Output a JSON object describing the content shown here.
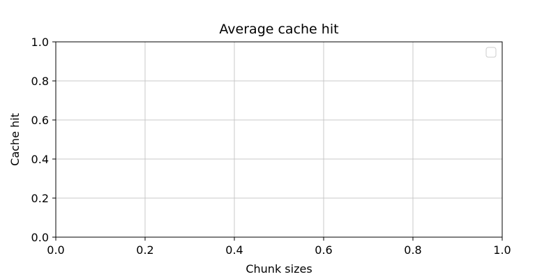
{
  "chart_data": {
    "type": "line",
    "title": "Average cache hit",
    "xlabel": "Chunk sizes",
    "ylabel": "Cache hit",
    "xlim": [
      0.0,
      1.0
    ],
    "ylim": [
      0.0,
      1.0
    ],
    "xticks": [
      0.0,
      0.2,
      0.4,
      0.6,
      0.8,
      1.0
    ],
    "yticks": [
      0.0,
      0.2,
      0.4,
      0.6,
      0.8,
      1.0
    ],
    "xtick_labels": [
      "0.0",
      "0.2",
      "0.4",
      "0.6",
      "0.8",
      "1.0"
    ],
    "ytick_labels": [
      "0.0",
      "0.2",
      "0.4",
      "0.6",
      "0.8",
      "1.0"
    ],
    "grid": true,
    "legend_placement": "top-right",
    "legend_entries": [],
    "series": []
  }
}
